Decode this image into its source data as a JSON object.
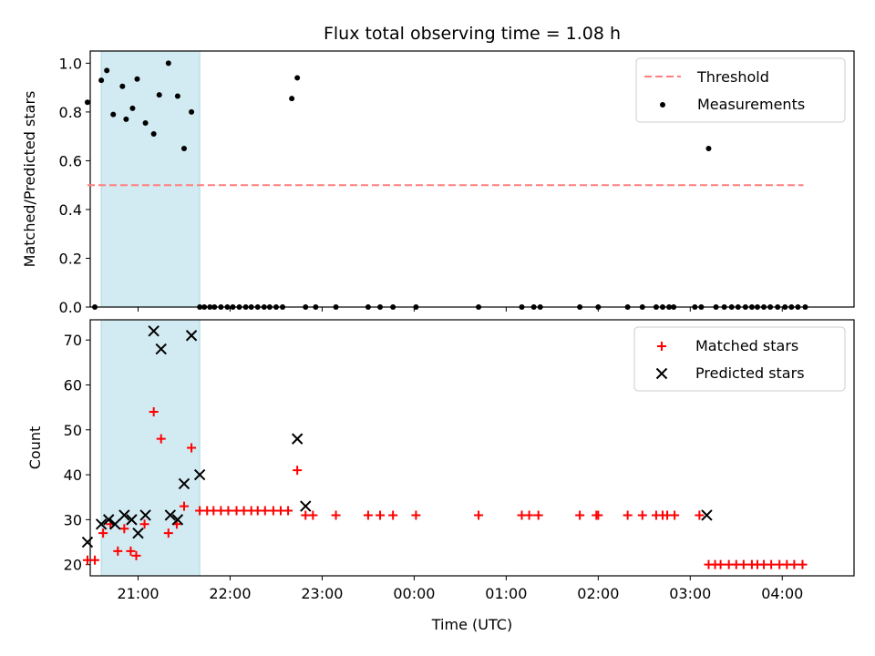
{
  "chart_data": {
    "type": "scatter",
    "title": "Flux total observing time = 1.08 h",
    "xlabel": "Time (UTC)",
    "x_ticks": [
      "21:00",
      "22:00",
      "23:00",
      "00:00",
      "01:00",
      "02:00",
      "03:00",
      "04:00"
    ],
    "x_tick_hours": [
      21,
      22,
      23,
      24,
      25,
      26,
      27,
      28
    ],
    "xlim_hours": [
      20.48,
      28.78
    ],
    "shaded_interval_hours": [
      20.6,
      21.67
    ],
    "shade_color": "#add8e6",
    "panels": [
      {
        "ylabel": "Matched/Predicted stars",
        "ylim": [
          0,
          1.05
        ],
        "y_ticks": [
          0.0,
          0.2,
          0.4,
          0.6,
          0.8,
          1.0
        ],
        "legend_location": "upper right",
        "threshold": {
          "name": "Threshold",
          "value": 0.5,
          "x_range": [
            20.45,
            28.23
          ],
          "color": "#ff7f7f"
        },
        "measurements": {
          "name": "Measurements",
          "color": "#000000",
          "x": [
            20.45,
            20.53,
            20.6,
            20.66,
            20.73,
            20.83,
            20.87,
            20.94,
            20.99,
            21.08,
            21.17,
            21.23,
            21.33,
            21.43,
            21.5,
            21.58,
            21.67,
            21.72,
            21.78,
            21.83,
            21.9,
            21.97,
            22.03,
            22.1,
            22.17,
            22.23,
            22.3,
            22.37,
            22.43,
            22.5,
            22.57,
            22.67,
            22.73,
            22.82,
            22.93,
            23.15,
            23.5,
            23.63,
            23.77,
            24.02,
            24.7,
            25.17,
            25.3,
            25.37,
            25.8,
            26.0,
            26.32,
            26.48,
            26.63,
            26.7,
            26.77,
            26.82,
            27.05,
            27.12,
            27.2,
            27.28,
            27.37,
            27.45,
            27.52,
            27.6,
            27.67,
            27.73,
            27.8,
            27.87,
            27.95,
            28.03,
            28.1,
            28.17,
            28.25
          ],
          "y": [
            0.84,
            0.0,
            0.93,
            0.97,
            0.79,
            0.905,
            0.77,
            0.815,
            0.935,
            0.755,
            0.71,
            0.87,
            1.0,
            0.865,
            0.65,
            0.8,
            0.0,
            0.0,
            0.0,
            0.0,
            0.0,
            0.0,
            0.0,
            0.0,
            0.0,
            0.0,
            0.0,
            0.0,
            0.0,
            0.0,
            0.0,
            0.855,
            0.94,
            0.0,
            0.0,
            0.0,
            0.0,
            0.0,
            0.0,
            0.0,
            0.0,
            0.0,
            0.0,
            0.0,
            0.0,
            0.0,
            0.0,
            0.0,
            0.0,
            0.0,
            0.0,
            0.0,
            0.0,
            0.0,
            0.65,
            0.0,
            0.0,
            0.0,
            0.0,
            0.0,
            0.0,
            0.0,
            0.0,
            0.0,
            0.0,
            0.0,
            0.0,
            0.0,
            0.0
          ]
        }
      },
      {
        "ylabel": "Count",
        "ylim": [
          17.5,
          74.5
        ],
        "y_ticks": [
          20,
          30,
          40,
          50,
          60,
          70
        ],
        "legend_location": "upper right",
        "series": [
          {
            "name": "Matched stars",
            "marker": "plus",
            "color": "#ff0000",
            "x": [
              20.45,
              20.53,
              20.62,
              20.7,
              20.78,
              20.85,
              20.92,
              20.98,
              21.07,
              21.17,
              21.25,
              21.33,
              21.42,
              21.5,
              21.58,
              21.67,
              21.75,
              21.82,
              21.9,
              21.98,
              22.07,
              22.15,
              22.23,
              22.3,
              22.38,
              22.47,
              22.55,
              22.63,
              22.73,
              22.82,
              22.9,
              23.15,
              23.5,
              23.63,
              23.77,
              24.02,
              24.7,
              25.17,
              25.25,
              25.35,
              25.8,
              25.98,
              26.0,
              26.32,
              26.48,
              26.63,
              26.7,
              26.75,
              26.83,
              27.1,
              27.2,
              27.27,
              27.33,
              27.42,
              27.5,
              27.58,
              27.67,
              27.73,
              27.8,
              27.88,
              27.97,
              28.05,
              28.13,
              28.22
            ],
            "y": [
              21,
              21,
              27,
              29,
              23,
              28,
              23,
              22,
              29,
              54,
              48,
              27,
              29,
              33,
              46,
              32,
              32,
              32,
              32,
              32,
              32,
              32,
              32,
              32,
              32,
              32,
              32,
              32,
              41,
              31,
              31,
              31,
              31,
              31,
              31,
              31,
              31,
              31,
              31,
              31,
              31,
              31,
              31,
              31,
              31,
              31,
              31,
              31,
              31,
              31,
              20,
              20,
              20,
              20,
              20,
              20,
              20,
              20,
              20,
              20,
              20,
              20,
              20,
              20
            ]
          },
          {
            "name": "Predicted stars",
            "marker": "x",
            "color": "#000000",
            "x": [
              20.45,
              20.6,
              20.68,
              20.75,
              20.85,
              20.93,
              21.0,
              21.08,
              21.17,
              21.25,
              21.35,
              21.43,
              21.5,
              21.58,
              21.67,
              22.73,
              22.82,
              27.18
            ],
            "y": [
              25,
              29,
              30,
              29,
              31,
              30,
              27,
              31,
              72,
              68,
              31,
              30,
              38,
              71,
              40,
              48,
              33,
              31
            ]
          }
        ]
      }
    ]
  }
}
